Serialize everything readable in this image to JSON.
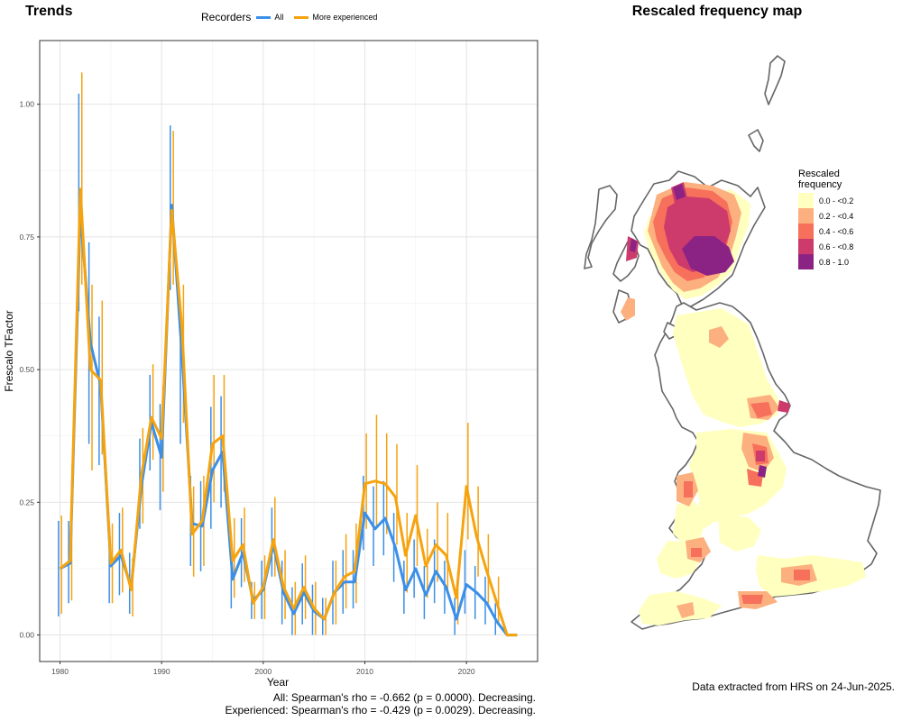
{
  "trends_panel": {
    "title": "Trends",
    "stats": [
      "All: Spearman's rho = -0.662 (p = 0.0000). Decreasing.",
      "Experienced: Spearman's rho = -0.429 (p = 0.0029). Decreasing."
    ]
  },
  "map_panel": {
    "title": "Rescaled frequency map",
    "legend_title_lines": [
      "Rescaled",
      "frequency"
    ],
    "legend": [
      {
        "label": "0.0 - <0.2",
        "color": "#FFFFC0"
      },
      {
        "label": "0.2 - <0.4",
        "color": "#FDB07F"
      },
      {
        "label": "0.4 - <0.6",
        "color": "#F6705B"
      },
      {
        "label": "0.6 - <0.8",
        "color": "#CD3A6C"
      },
      {
        "label": "0.8 - 1.0",
        "color": "#8B2384"
      }
    ],
    "outline_color": "#666666",
    "caption": "Data extracted from HRS on 24-Jun-2025."
  },
  "chart_data": {
    "type": "line",
    "xlabel": "Year",
    "ylabel": "Frescalo TFactor",
    "xlim": [
      1978,
      2027
    ],
    "ylim": [
      -0.05,
      1.12
    ],
    "xticks": [
      1980,
      1990,
      2000,
      2010,
      2020
    ],
    "yticks": [
      0.0,
      0.25,
      0.5,
      0.75,
      1.0
    ],
    "ytick_labels": [
      "0.00",
      "0.25",
      "0.50",
      "0.75",
      "1.00"
    ],
    "grid": true,
    "legend": {
      "title": "Recorders",
      "position": "top"
    },
    "series": [
      {
        "name": "All",
        "color": "#3B8FE8",
        "points": [
          [
            1980,
            0.125,
            0.035,
            0.215
          ],
          [
            1981,
            0.135,
            0.06,
            0.215
          ],
          [
            1982,
            0.8,
            0.61,
            1.02
          ],
          [
            1983,
            0.55,
            0.36,
            0.74
          ],
          [
            1984,
            0.47,
            0.32,
            0.6
          ],
          [
            1985,
            0.13,
            0.06,
            0.21
          ],
          [
            1986,
            0.15,
            0.075,
            0.23
          ],
          [
            1987,
            0.09,
            0.04,
            0.155
          ],
          [
            1988,
            0.28,
            0.2,
            0.37
          ],
          [
            1989,
            0.4,
            0.31,
            0.49
          ],
          [
            1990,
            0.335,
            0.235,
            0.435
          ],
          [
            1991,
            0.81,
            0.65,
            0.96
          ],
          [
            1992,
            0.53,
            0.36,
            0.61
          ],
          [
            1993,
            0.21,
            0.13,
            0.3
          ],
          [
            1994,
            0.205,
            0.12,
            0.29
          ],
          [
            1995,
            0.31,
            0.2,
            0.43
          ],
          [
            1996,
            0.345,
            0.24,
            0.45
          ],
          [
            1997,
            0.105,
            0.05,
            0.16
          ],
          [
            1998,
            0.155,
            0.09,
            0.22
          ],
          [
            1999,
            0.065,
            0.03,
            0.1
          ],
          [
            2000,
            0.085,
            0.03,
            0.14
          ],
          [
            2001,
            0.17,
            0.11,
            0.24
          ],
          [
            2002,
            0.08,
            0.02,
            0.14
          ],
          [
            2003,
            0.04,
            0.0,
            0.09
          ],
          [
            2004,
            0.08,
            0.02,
            0.135
          ],
          [
            2005,
            0.045,
            0.0,
            0.095
          ],
          [
            2006,
            0.03,
            0.0,
            0.07
          ],
          [
            2007,
            0.08,
            0.02,
            0.14
          ],
          [
            2008,
            0.1,
            0.04,
            0.16
          ],
          [
            2009,
            0.1,
            0.05,
            0.16
          ],
          [
            2010,
            0.23,
            0.16,
            0.3
          ],
          [
            2011,
            0.2,
            0.13,
            0.28
          ],
          [
            2012,
            0.22,
            0.15,
            0.29
          ],
          [
            2013,
            0.165,
            0.1,
            0.23
          ],
          [
            2014,
            0.085,
            0.04,
            0.14
          ],
          [
            2015,
            0.125,
            0.07,
            0.18
          ],
          [
            2016,
            0.075,
            0.03,
            0.13
          ],
          [
            2017,
            0.12,
            0.06,
            0.18
          ],
          [
            2018,
            0.09,
            0.04,
            0.14
          ],
          [
            2019,
            0.03,
            0.0,
            0.07
          ],
          [
            2020,
            0.095,
            0.04,
            0.16
          ],
          [
            2021,
            0.08,
            0.03,
            0.13
          ],
          [
            2022,
            0.06,
            0.02,
            0.11
          ],
          [
            2023,
            0.025,
            0.0,
            0.06
          ],
          [
            2024,
            0.0,
            0.0,
            0.0
          ],
          [
            2025,
            0.0,
            0.0,
            0.0
          ]
        ]
      },
      {
        "name": "More experienced",
        "color": "#F5A30E",
        "points": [
          [
            1980,
            0.125,
            0.04,
            0.225
          ],
          [
            1981,
            0.14,
            0.065,
            0.22
          ],
          [
            1982,
            0.84,
            0.66,
            1.06
          ],
          [
            1983,
            0.5,
            0.31,
            0.66
          ],
          [
            1984,
            0.48,
            0.34,
            0.63
          ],
          [
            1985,
            0.135,
            0.06,
            0.21
          ],
          [
            1986,
            0.16,
            0.08,
            0.24
          ],
          [
            1987,
            0.085,
            0.035,
            0.145
          ],
          [
            1988,
            0.3,
            0.21,
            0.39
          ],
          [
            1989,
            0.41,
            0.33,
            0.51
          ],
          [
            1990,
            0.37,
            0.27,
            0.47
          ],
          [
            1991,
            0.8,
            0.66,
            0.95
          ],
          [
            1992,
            0.58,
            0.4,
            0.66
          ],
          [
            1993,
            0.19,
            0.11,
            0.28
          ],
          [
            1994,
            0.215,
            0.13,
            0.3
          ],
          [
            1995,
            0.36,
            0.25,
            0.49
          ],
          [
            1996,
            0.375,
            0.27,
            0.49
          ],
          [
            1997,
            0.14,
            0.07,
            0.22
          ],
          [
            1998,
            0.17,
            0.1,
            0.24
          ],
          [
            1999,
            0.06,
            0.03,
            0.1
          ],
          [
            2000,
            0.09,
            0.03,
            0.15
          ],
          [
            2001,
            0.18,
            0.11,
            0.26
          ],
          [
            2002,
            0.09,
            0.03,
            0.16
          ],
          [
            2003,
            0.05,
            0.0,
            0.1
          ],
          [
            2004,
            0.09,
            0.03,
            0.15
          ],
          [
            2005,
            0.05,
            0.0,
            0.1
          ],
          [
            2006,
            0.03,
            0.0,
            0.07
          ],
          [
            2007,
            0.08,
            0.02,
            0.14
          ],
          [
            2008,
            0.11,
            0.05,
            0.19
          ],
          [
            2009,
            0.12,
            0.06,
            0.21
          ],
          [
            2010,
            0.285,
            0.2,
            0.38
          ],
          [
            2011,
            0.29,
            0.2,
            0.415
          ],
          [
            2012,
            0.285,
            0.19,
            0.38
          ],
          [
            2013,
            0.26,
            0.17,
            0.36
          ],
          [
            2014,
            0.15,
            0.08,
            0.23
          ],
          [
            2015,
            0.225,
            0.13,
            0.32
          ],
          [
            2016,
            0.13,
            0.07,
            0.2
          ],
          [
            2017,
            0.17,
            0.1,
            0.25
          ],
          [
            2018,
            0.15,
            0.08,
            0.23
          ],
          [
            2019,
            0.07,
            0.02,
            0.12
          ],
          [
            2020,
            0.28,
            0.18,
            0.4
          ],
          [
            2021,
            0.185,
            0.11,
            0.28
          ],
          [
            2022,
            0.12,
            0.06,
            0.19
          ],
          [
            2023,
            0.06,
            0.02,
            0.11
          ],
          [
            2024,
            0.0,
            0.0,
            0.0
          ],
          [
            2025,
            0.0,
            0.0,
            0.0
          ]
        ]
      }
    ]
  }
}
